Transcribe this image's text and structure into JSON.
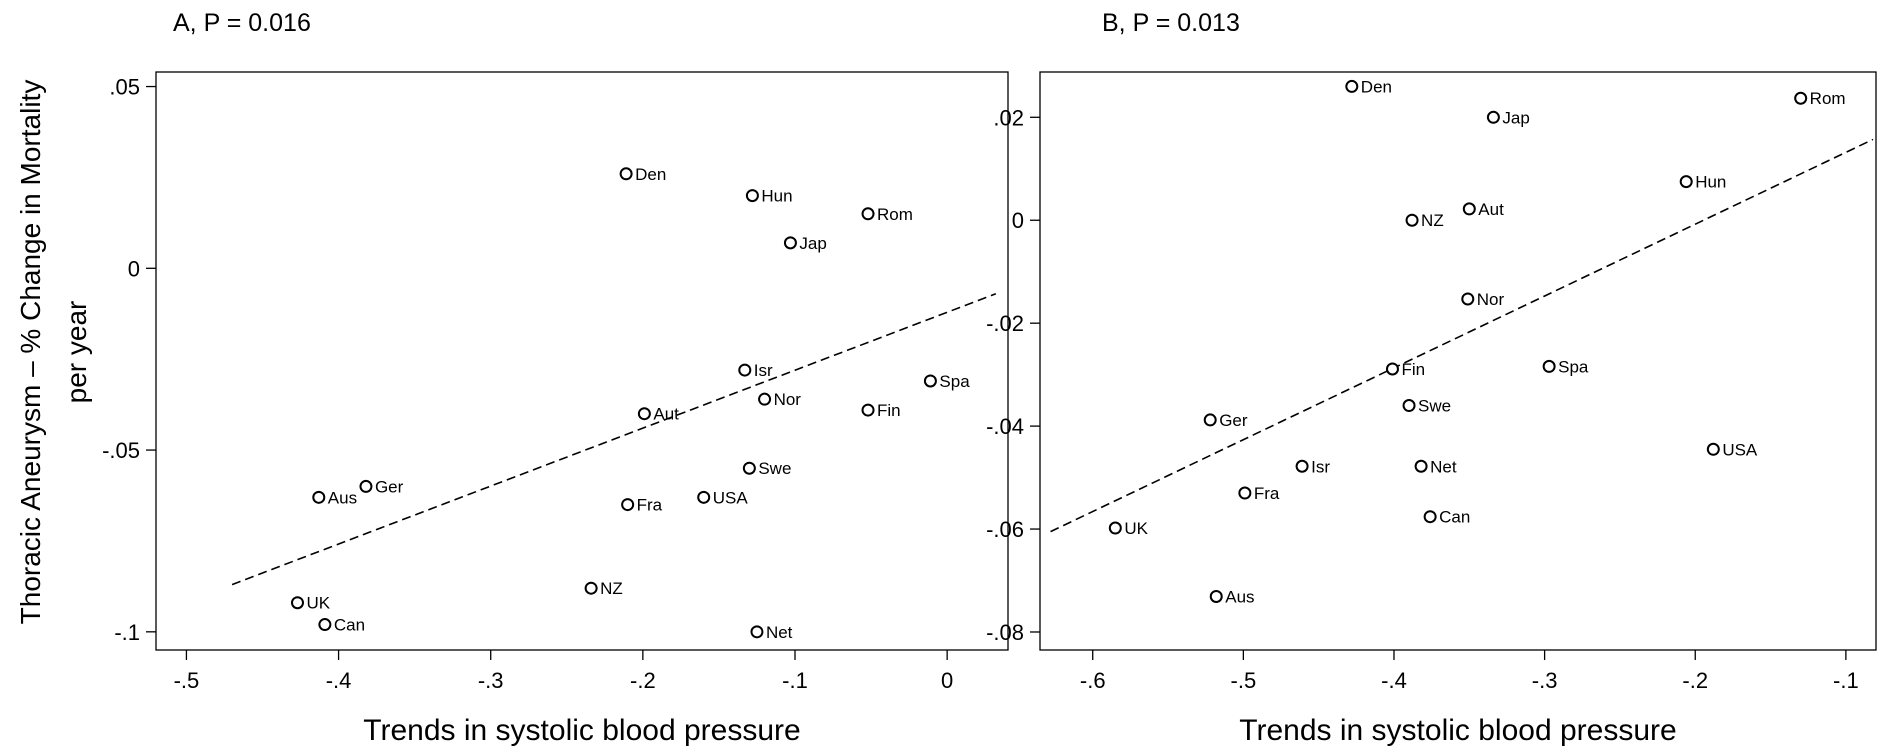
{
  "y_title": "Thoracic Aneurysm – % Change in Mortality",
  "y_title_line2": "per year",
  "chart_data": [
    {
      "type": "scatter",
      "title": "A, P = 0.016",
      "xlabel": "Trends in systolic blood pressure",
      "ylabel": "Thoracic Aneurysm – % Change in Mortality per year",
      "xlim": [
        -0.52,
        0.04
      ],
      "ylim": [
        -0.105,
        0.054
      ],
      "xticks": [
        -0.5,
        -0.4,
        -0.3,
        -0.2,
        -0.1,
        0
      ],
      "xtick_labels": [
        "-.5",
        "-.4",
        "-.3",
        "-.2",
        "-.1",
        "0"
      ],
      "yticks": [
        0.05,
        0,
        -0.05,
        -0.1
      ],
      "ytick_labels": [
        ".05",
        "0",
        "-.05",
        "-.1"
      ],
      "grid": false,
      "points": [
        {
          "label": "Den",
          "x": -0.211,
          "y": 0.026
        },
        {
          "label": "Hun",
          "x": -0.128,
          "y": 0.02
        },
        {
          "label": "Rom",
          "x": -0.052,
          "y": 0.015
        },
        {
          "label": "Jap",
          "x": -0.103,
          "y": 0.007
        },
        {
          "label": "Isr",
          "x": -0.133,
          "y": -0.028
        },
        {
          "label": "Spa",
          "x": -0.011,
          "y": -0.031
        },
        {
          "label": "Nor",
          "x": -0.12,
          "y": -0.036
        },
        {
          "label": "Aut",
          "x": -0.199,
          "y": -0.04
        },
        {
          "label": "Fin",
          "x": -0.052,
          "y": -0.039
        },
        {
          "label": "Swe",
          "x": -0.13,
          "y": -0.055
        },
        {
          "label": "Ger",
          "x": -0.382,
          "y": -0.06
        },
        {
          "label": "Aus",
          "x": -0.413,
          "y": -0.063
        },
        {
          "label": "USA",
          "x": -0.16,
          "y": -0.063
        },
        {
          "label": "Fra",
          "x": -0.21,
          "y": -0.065
        },
        {
          "label": "NZ",
          "x": -0.234,
          "y": -0.088
        },
        {
          "label": "UK",
          "x": -0.427,
          "y": -0.092
        },
        {
          "label": "Can",
          "x": -0.409,
          "y": -0.098
        },
        {
          "label": "Net",
          "x": -0.125,
          "y": -0.1
        }
      ],
      "fit_line": {
        "x": [
          -0.47,
          0.032
        ],
        "y": [
          -0.087,
          -0.007
        ]
      }
    },
    {
      "type": "scatter",
      "title": "B, P = 0.013",
      "xlabel": "Trends in systolic blood pressure",
      "ylabel": "Thoracic Aneurysm – % Change in Mortality per year",
      "xlim": [
        -0.635,
        -0.08
      ],
      "ylim": [
        -0.0835,
        0.0288
      ],
      "xticks": [
        -0.6,
        -0.5,
        -0.4,
        -0.3,
        -0.2,
        -0.1
      ],
      "xtick_labels": [
        "-.6",
        "-.5",
        "-.4",
        "-.3",
        "-.2",
        "-.1"
      ],
      "yticks": [
        0.02,
        0,
        -0.02,
        -0.04,
        -0.06,
        -0.08
      ],
      "ytick_labels": [
        ".02",
        "0",
        "-.02",
        "-.04",
        "-.06",
        "-.08"
      ],
      "grid": false,
      "points": [
        {
          "label": "Den",
          "x": -0.428,
          "y": 0.026
        },
        {
          "label": "Rom",
          "x": -0.13,
          "y": 0.0237
        },
        {
          "label": "Jap",
          "x": -0.334,
          "y": 0.02
        },
        {
          "label": "Hun",
          "x": -0.206,
          "y": 0.0075
        },
        {
          "label": "Aut",
          "x": -0.35,
          "y": 0.0022
        },
        {
          "label": "NZ",
          "x": -0.388,
          "y": 0.0
        },
        {
          "label": "Nor",
          "x": -0.351,
          "y": -0.0153
        },
        {
          "label": "Spa",
          "x": -0.297,
          "y": -0.0284
        },
        {
          "label": "Fin",
          "x": -0.401,
          "y": -0.0289
        },
        {
          "label": "Swe",
          "x": -0.39,
          "y": -0.036
        },
        {
          "label": "Ger",
          "x": -0.522,
          "y": -0.0388
        },
        {
          "label": "USA",
          "x": -0.188,
          "y": -0.0445
        },
        {
          "label": "Isr",
          "x": -0.461,
          "y": -0.0478
        },
        {
          "label": "Net",
          "x": -0.382,
          "y": -0.0478
        },
        {
          "label": "Fra",
          "x": -0.499,
          "y": -0.053
        },
        {
          "label": "Can",
          "x": -0.376,
          "y": -0.0576
        },
        {
          "label": "UK",
          "x": -0.585,
          "y": -0.0598
        },
        {
          "label": "Aus",
          "x": -0.518,
          "y": -0.0731
        }
      ],
      "fit_line": {
        "x": [
          -0.628,
          -0.082
        ],
        "y": [
          -0.0605,
          0.0157
        ]
      }
    }
  ]
}
